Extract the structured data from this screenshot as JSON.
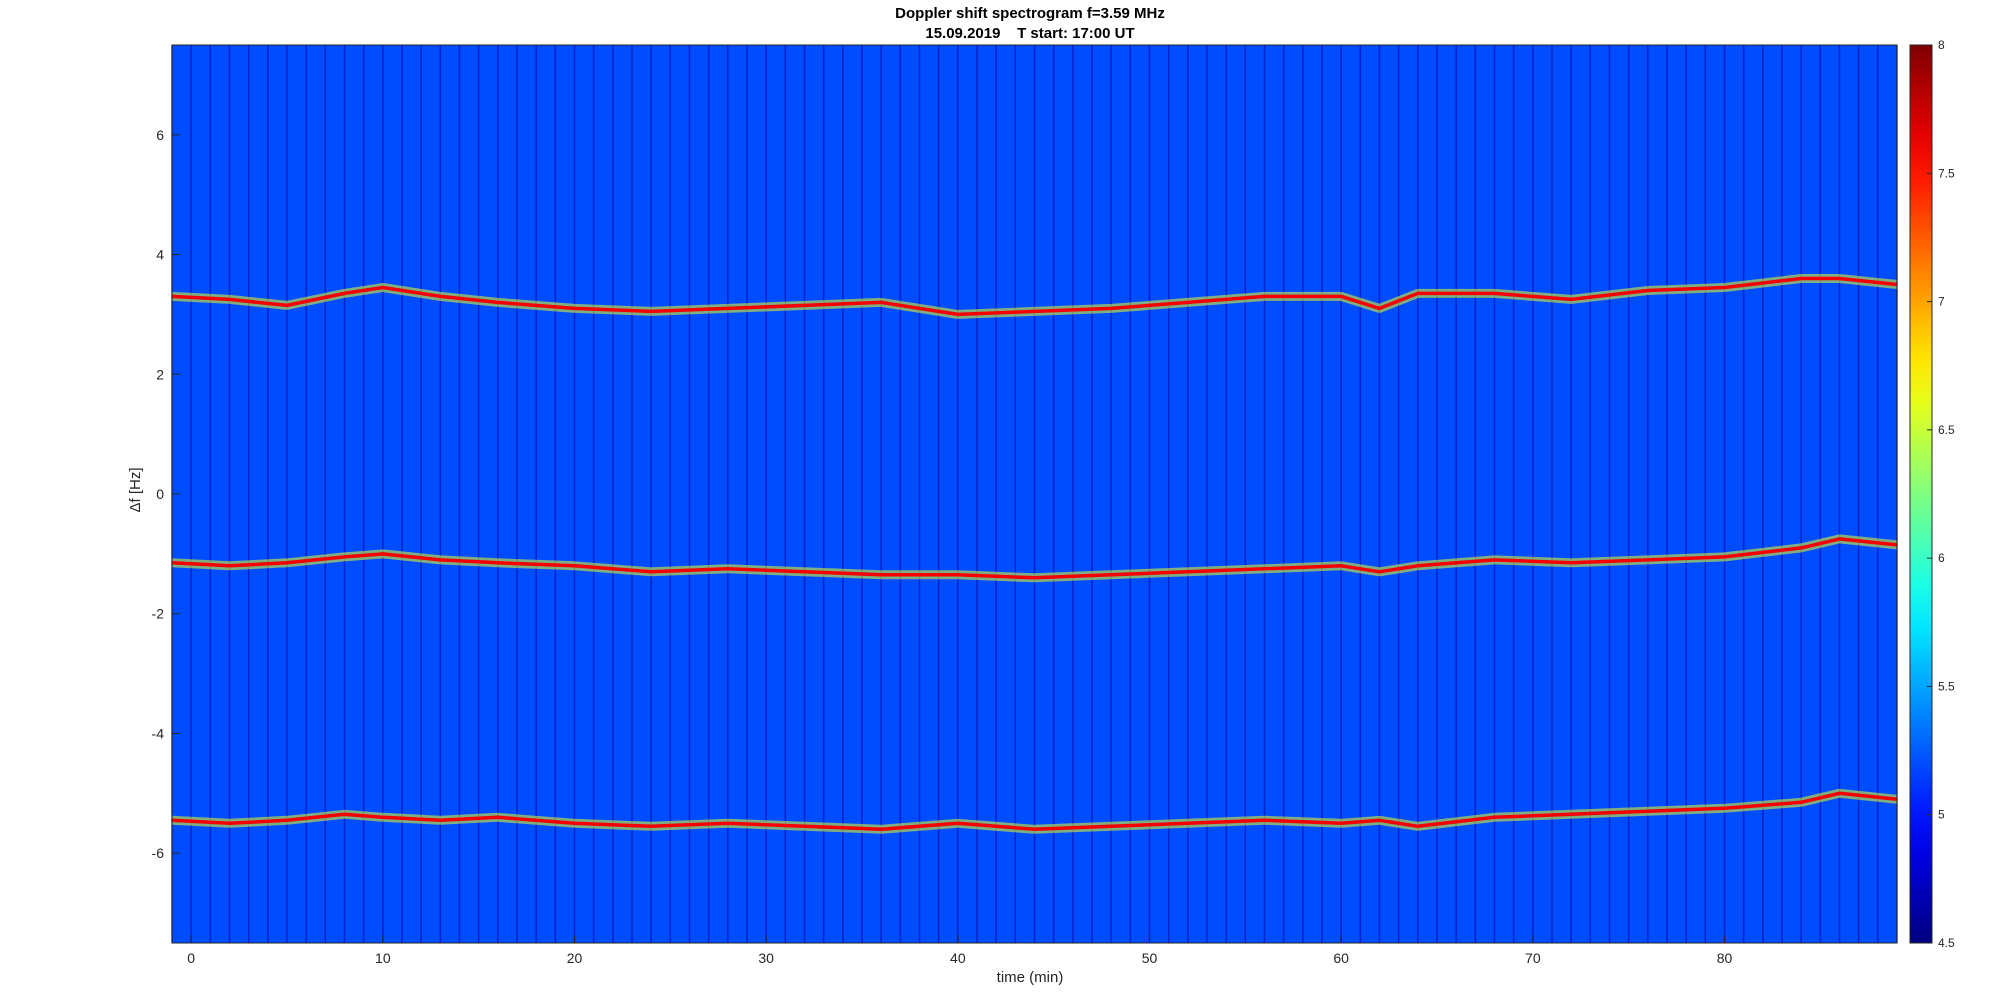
{
  "chart_data": {
    "type": "heatmap",
    "title": "Doppler shift spectrogram f=3.59 MHz",
    "subtitle": "15.09.2019    T start: 17:00 UT",
    "xlabel": "time (min)",
    "ylabel": "Δf [Hz]",
    "xlim": [
      -1,
      89
    ],
    "ylim": [
      -7.5,
      7.5
    ],
    "xticks": [
      0,
      10,
      20,
      30,
      40,
      50,
      60,
      70,
      80
    ],
    "yticks": [
      -6,
      -4,
      -2,
      0,
      2,
      4,
      6
    ],
    "colormap": "jet",
    "clim": [
      4.5,
      8
    ],
    "colorbar_ticks": [
      4.5,
      5,
      5.5,
      6,
      6.5,
      7,
      7.5,
      8
    ],
    "background_level": 5.2,
    "segment_spacing_min": 1,
    "traces": [
      {
        "level": 7.6,
        "x": [
          -1,
          2,
          5,
          8,
          10,
          13,
          16,
          20,
          24,
          28,
          32,
          36,
          40,
          44,
          48,
          52,
          56,
          60,
          62,
          64,
          68,
          72,
          76,
          80,
          84,
          86,
          89
        ],
        "y": [
          3.3,
          3.25,
          3.15,
          3.35,
          3.45,
          3.3,
          3.2,
          3.1,
          3.05,
          3.1,
          3.15,
          3.2,
          3.0,
          3.05,
          3.1,
          3.2,
          3.3,
          3.3,
          3.1,
          3.35,
          3.35,
          3.25,
          3.4,
          3.45,
          3.6,
          3.6,
          3.5
        ]
      },
      {
        "level": 7.6,
        "x": [
          -1,
          2,
          5,
          8,
          10,
          13,
          16,
          20,
          24,
          28,
          32,
          36,
          40,
          44,
          48,
          52,
          56,
          60,
          62,
          64,
          68,
          72,
          76,
          80,
          84,
          86,
          89
        ],
        "y": [
          -1.15,
          -1.2,
          -1.15,
          -1.05,
          -1.0,
          -1.1,
          -1.15,
          -1.2,
          -1.3,
          -1.25,
          -1.3,
          -1.35,
          -1.35,
          -1.4,
          -1.35,
          -1.3,
          -1.25,
          -1.2,
          -1.3,
          -1.2,
          -1.1,
          -1.15,
          -1.1,
          -1.05,
          -0.9,
          -0.75,
          -0.85
        ]
      },
      {
        "level": 7.6,
        "x": [
          -1,
          2,
          5,
          8,
          10,
          13,
          16,
          20,
          24,
          28,
          32,
          36,
          40,
          44,
          48,
          52,
          56,
          60,
          62,
          64,
          68,
          72,
          76,
          80,
          84,
          86,
          89
        ],
        "y": [
          -5.45,
          -5.5,
          -5.45,
          -5.35,
          -5.4,
          -5.45,
          -5.4,
          -5.5,
          -5.55,
          -5.5,
          -5.55,
          -5.6,
          -5.5,
          -5.6,
          -5.55,
          -5.5,
          -5.45,
          -5.5,
          -5.45,
          -5.55,
          -5.4,
          -5.35,
          -5.3,
          -5.25,
          -5.15,
          -5.0,
          -5.1
        ]
      }
    ]
  }
}
